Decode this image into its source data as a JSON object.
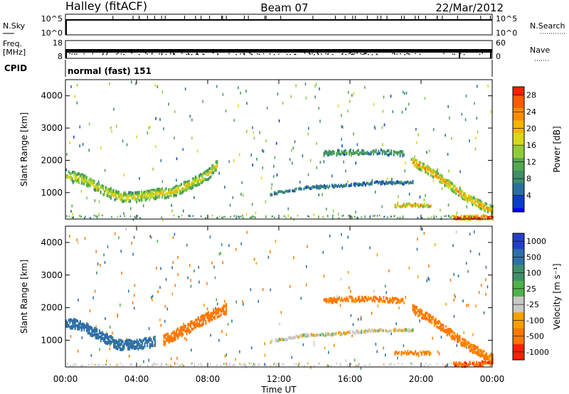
{
  "header": {
    "station": "Halley (fitACF)",
    "beam": "Beam 07",
    "date": "22/Mar/2012"
  },
  "strips": {
    "nsky": {
      "label": "N.Sky",
      "ticks": [
        "10^5",
        "10^0"
      ]
    },
    "nsearch": {
      "label": "N.Search",
      "ticks": [
        "10^5",
        "10^0"
      ]
    },
    "freq": {
      "label_line1": "Freq.",
      "label_line2": "[MHz]",
      "ticks": [
        "18",
        "8"
      ]
    },
    "nave": {
      "label": "Nave",
      "ticks": [
        "60",
        "0"
      ]
    },
    "cpid": {
      "label": "CPID",
      "value": "normal (fast) 151"
    }
  },
  "colors": {
    "power_scale": [
      "#0000ff",
      "#0a3fc8",
      "#2b6fa0",
      "#3f8f6a",
      "#54a850",
      "#8fcc3c",
      "#d9d71a",
      "#f5b400",
      "#ff8c00",
      "#ff5a00",
      "#ff1e00"
    ],
    "velocity_scale": [
      "#2440c8",
      "#2f6fa8",
      "#3f8f6a",
      "#4fb34a",
      "#c8c8c8",
      "#f5a000",
      "#ff7800",
      "#ff2000"
    ]
  },
  "chart_data": [
    {
      "type": "heatmap",
      "panel": "power",
      "xlabel": "Time UT",
      "ylabel": "Slant Range [km]",
      "x_ticks": [
        "00:00",
        "04:00",
        "08:00",
        "12:00",
        "16:00",
        "20:00",
        "00:00"
      ],
      "xlim_hours": [
        0,
        24
      ],
      "y_ticks": [
        1000,
        2000,
        3000,
        4000
      ],
      "ylim": [
        180,
        4500
      ],
      "colorbar": {
        "label": "Power [dB]",
        "ticks": [
          4,
          8,
          12,
          16,
          20,
          24,
          28
        ],
        "range": [
          0,
          30
        ]
      },
      "echo_bands": [
        {
          "t": [
            0.0,
            1.0,
            2.0,
            3.0,
            4.0,
            5.0,
            6.0,
            7.0,
            8.0,
            8.5
          ],
          "r": [
            1600,
            1450,
            1150,
            900,
            900,
            1000,
            1050,
            1300,
            1600,
            1900
          ],
          "width_km": 300,
          "value": 18
        },
        {
          "t": [
            14.5,
            16.0,
            17.5,
            19.0
          ],
          "r": [
            2250,
            2300,
            2300,
            2250
          ],
          "width_km": 150,
          "value": 11
        },
        {
          "t": [
            11.5,
            13.5,
            15.5,
            17.5,
            19.5
          ],
          "r": [
            1000,
            1200,
            1250,
            1350,
            1350
          ],
          "width_km": 80,
          "value": 8
        },
        {
          "t": [
            19.5,
            20.5,
            21.5,
            22.5,
            23.5,
            24.0
          ],
          "r": [
            2000,
            1700,
            1300,
            900,
            600,
            500
          ],
          "width_km": 250,
          "value": 22
        },
        {
          "t": [
            18.5,
            19.5,
            20.5
          ],
          "r": [
            650,
            650,
            650
          ],
          "width_km": 100,
          "value": 23
        },
        {
          "t": [
            21.8,
            22.5,
            23.3,
            24.0
          ],
          "r": [
            260,
            260,
            270,
            280
          ],
          "width_km": 130,
          "value": 29
        }
      ]
    },
    {
      "type": "heatmap",
      "panel": "velocity",
      "xlabel": "Time UT",
      "ylabel": "Slant Range [km]",
      "x_ticks": [
        "00:00",
        "04:00",
        "08:00",
        "12:00",
        "16:00",
        "20:00",
        "00:00"
      ],
      "xlim_hours": [
        0,
        24
      ],
      "y_ticks": [
        1000,
        2000,
        3000,
        4000
      ],
      "ylim": [
        180,
        4500
      ],
      "colorbar": {
        "label": "Velocity [m s⁻¹]",
        "ticks": [
          "1000",
          "500",
          "100",
          "25",
          "-25",
          "-100",
          "-500",
          "-1000"
        ]
      },
      "echo_bands": [
        {
          "t": [
            0.0,
            1.0,
            2.0,
            3.0,
            4.0,
            5.0
          ],
          "r": [
            1600,
            1450,
            1150,
            900,
            900,
            1000
          ],
          "width_km": 300,
          "value": 180
        },
        {
          "t": [
            5.5,
            6.5,
            7.5,
            8.5,
            9.0
          ],
          "r": [
            1050,
            1300,
            1600,
            1900,
            2000
          ],
          "width_km": 300,
          "value": -250
        },
        {
          "t": [
            14.5,
            16.0,
            17.5,
            19.0
          ],
          "r": [
            2250,
            2300,
            2300,
            2250
          ],
          "width_km": 150,
          "value": -150
        },
        {
          "t": [
            11.5,
            13.5,
            15.5,
            17.5,
            19.5
          ],
          "r": [
            1000,
            1200,
            1250,
            1350,
            1350
          ],
          "width_km": 80,
          "value": 0
        },
        {
          "t": [
            19.5,
            20.5,
            21.5,
            22.5,
            23.5,
            24.0
          ],
          "r": [
            2000,
            1700,
            1300,
            900,
            600,
            500
          ],
          "width_km": 250,
          "value": -150
        },
        {
          "t": [
            18.5,
            19.5,
            20.5
          ],
          "r": [
            650,
            650,
            650
          ],
          "width_km": 100,
          "value": -120
        },
        {
          "t": [
            21.8,
            22.5,
            23.3,
            24.0
          ],
          "r": [
            300,
            300,
            320,
            350
          ],
          "width_km": 130,
          "value": -400
        }
      ]
    }
  ]
}
